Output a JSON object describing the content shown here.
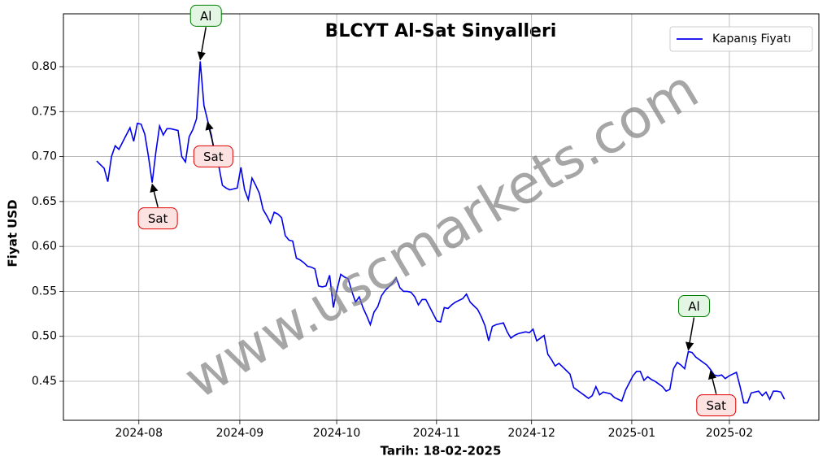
{
  "chart_data": {
    "type": "line",
    "title": "BLCYT Al-Sat Sinyalleri",
    "xlabel": "Tarih: 18-02-2025",
    "ylabel": "Fiyat USD",
    "watermark": "www.uscmarkets.com",
    "legend": "upper right",
    "grid": true,
    "xlim": [
      -9.0,
      195.3
    ],
    "ylim": [
      0.4066,
      0.8588
    ],
    "xticks": [
      {
        "value": 11.4,
        "label": "2024-08"
      },
      {
        "value": 38.7,
        "label": "2024-09"
      },
      {
        "value": 64.9,
        "label": "2024-10"
      },
      {
        "value": 91.9,
        "label": "2024-11"
      },
      {
        "value": 117.6,
        "label": "2024-12"
      },
      {
        "value": 144.7,
        "label": "2025-01"
      },
      {
        "value": 171.1,
        "label": "2025-02"
      }
    ],
    "yticks": [
      0.45,
      {
        "value": 0.5,
        "label": "0.50"
      },
      0.55,
      {
        "value": 0.6,
        "label": "0.60"
      },
      0.65,
      {
        "value": 0.7,
        "label": "0.70"
      },
      0.75,
      {
        "value": 0.8,
        "label": "0.80"
      }
    ],
    "series": [
      {
        "name": "Kapanış Fiyatı",
        "color": "#0000ee",
        "values": [
          0.695,
          0.691,
          0.687,
          0.672,
          0.7,
          0.712,
          0.708,
          0.716,
          0.724,
          0.732,
          0.717,
          0.737,
          0.736,
          0.725,
          0.7,
          0.671,
          0.705,
          0.734,
          0.724,
          0.731,
          0.731,
          0.73,
          0.729,
          0.7,
          0.694,
          0.722,
          0.73,
          0.742,
          0.806,
          0.757,
          0.74,
          0.724,
          0.7,
          0.69,
          0.668,
          0.665,
          0.663,
          0.664,
          0.665,
          0.688,
          0.663,
          0.652,
          0.676,
          0.668,
          0.659,
          0.641,
          0.634,
          0.626,
          0.638,
          0.636,
          0.632,
          0.612,
          0.607,
          0.606,
          0.587,
          0.585,
          0.582,
          0.578,
          0.577,
          0.575,
          0.556,
          0.555,
          0.556,
          0.568,
          0.532,
          0.552,
          0.569,
          0.566,
          0.564,
          0.55,
          0.538,
          0.544,
          0.532,
          0.523,
          0.513,
          0.527,
          0.533,
          0.545,
          0.551,
          0.555,
          0.559,
          0.565,
          0.554,
          0.55,
          0.55,
          0.549,
          0.544,
          0.535,
          0.541,
          0.541,
          0.533,
          0.525,
          0.517,
          0.516,
          0.532,
          0.531,
          0.535,
          0.538,
          0.54,
          0.542,
          0.547,
          0.538,
          0.534,
          0.53,
          0.522,
          0.512,
          0.495,
          0.511,
          0.513,
          0.514,
          0.515,
          0.505,
          0.498,
          0.501,
          0.503,
          0.504,
          0.505,
          0.504,
          0.508,
          0.495,
          0.498,
          0.501,
          0.48,
          0.474,
          0.467,
          0.47,
          0.466,
          0.462,
          0.458,
          0.443,
          0.44,
          0.437,
          0.434,
          0.431,
          0.434,
          0.444,
          0.435,
          0.438,
          0.437,
          0.436,
          0.432,
          0.43,
          0.428,
          0.44,
          0.448,
          0.456,
          0.461,
          0.461,
          0.451,
          0.455,
          0.452,
          0.45,
          0.447,
          0.444,
          0.439,
          0.441,
          0.464,
          0.471,
          0.468,
          0.464,
          0.483,
          0.482,
          0.477,
          0.474,
          0.471,
          0.468,
          0.463,
          0.457,
          0.456,
          0.457,
          0.453,
          0.456,
          0.458,
          0.46,
          0.444,
          0.426,
          0.426,
          0.437,
          0.438,
          0.439,
          0.434,
          0.438,
          0.43,
          0.439,
          0.439,
          0.438,
          0.43
        ]
      }
    ],
    "annotations": [
      {
        "text": "Al",
        "x": 28,
        "y": 0.806,
        "color": "#008000",
        "background": "#e3f6e3"
      },
      {
        "text": "Sat",
        "x": 15,
        "y": 0.671,
        "color": "#e00000",
        "background": "#fde2e2"
      },
      {
        "text": "Sat",
        "x": 30,
        "y": 0.74,
        "color": "#e00000",
        "background": "#fde2e2"
      },
      {
        "text": "Al",
        "x": 160,
        "y": 0.483,
        "color": "#008000",
        "background": "#e3f6e3"
      },
      {
        "text": "Sat",
        "x": 166,
        "y": 0.463,
        "color": "#e00000",
        "background": "#fde2e2"
      }
    ]
  }
}
